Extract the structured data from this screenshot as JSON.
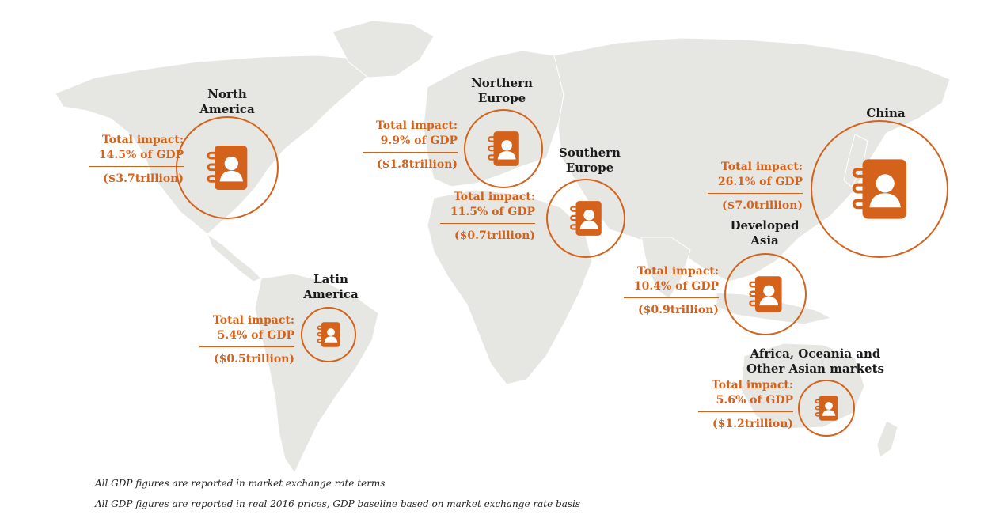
{
  "accent_color": "#d4621a",
  "map_color": "#e6e6e3",
  "icon": "address-book-icon",
  "regions": [
    {
      "key": "north_america",
      "name_lines": [
        "North",
        "America"
      ],
      "impact_label": "Total impact:",
      "impact_gdp": "14.5% of GDP",
      "impact_value": "($3.7trillion)",
      "gdp_share_percent": 14.5,
      "value_trillion_usd": 3.7
    },
    {
      "key": "northern_europe",
      "name_lines": [
        "Northern",
        "Europe"
      ],
      "impact_label": "Total impact:",
      "impact_gdp": "9.9% of GDP",
      "impact_value": "($1.8trillion)",
      "gdp_share_percent": 9.9,
      "value_trillion_usd": 1.8
    },
    {
      "key": "southern_europe",
      "name_lines": [
        "Southern",
        "Europe"
      ],
      "impact_label": "Total impact:",
      "impact_gdp": "11.5% of GDP",
      "impact_value": "($0.7trillion)",
      "gdp_share_percent": 11.5,
      "value_trillion_usd": 0.7
    },
    {
      "key": "china",
      "name_lines": [
        "China"
      ],
      "impact_label": "Total impact:",
      "impact_gdp": "26.1% of GDP",
      "impact_value": "($7.0trillion)",
      "gdp_share_percent": 26.1,
      "value_trillion_usd": 7.0
    },
    {
      "key": "developed_asia",
      "name_lines": [
        "Developed",
        "Asia"
      ],
      "impact_label": "Total impact:",
      "impact_gdp": "10.4% of GDP",
      "impact_value": "($0.9trillion)",
      "gdp_share_percent": 10.4,
      "value_trillion_usd": 0.9
    },
    {
      "key": "latin_america",
      "name_lines": [
        "Latin",
        "America"
      ],
      "impact_label": "Total impact:",
      "impact_gdp": "5.4% of GDP",
      "impact_value": "($0.5trillion)",
      "gdp_share_percent": 5.4,
      "value_trillion_usd": 0.5
    },
    {
      "key": "africa_oceania",
      "name_lines": [
        "Africa, Oceania and",
        "Other Asian markets"
      ],
      "impact_label": "Total impact:",
      "impact_gdp": "5.6% of GDP",
      "impact_value": "($1.2trillion)",
      "gdp_share_percent": 5.6,
      "value_trillion_usd": 1.2
    }
  ],
  "footnotes": [
    "All GDP figures are reported in market exchange rate terms",
    "All GDP figures are reported in real 2016 prices, GDP baseline based on market exchange rate basis"
  ]
}
